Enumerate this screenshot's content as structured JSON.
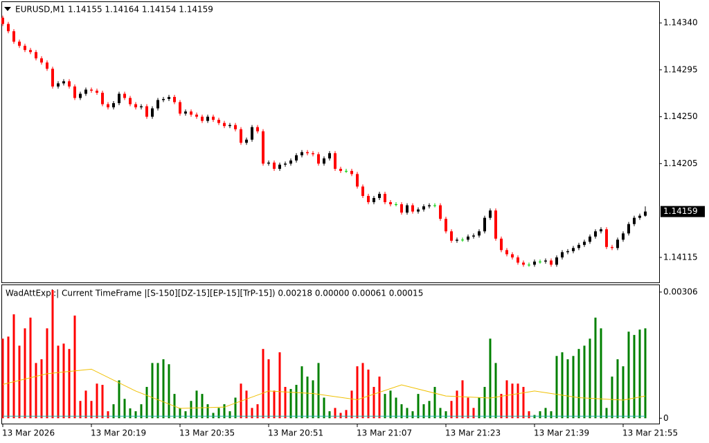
{
  "chart_data": [
    {
      "type": "candlestick",
      "title": "EURUSD,M1  1.14155 1.14164 1.14154 1.14159",
      "open": [
        1.14345,
        1.14339,
        1.14332,
        1.14322,
        1.14318,
        1.14314,
        1.14312,
        1.14306,
        1.14302,
        1.14296,
        1.14279,
        1.14282,
        1.14284,
        1.14279,
        1.14268,
        1.14272,
        1.14276,
        1.14275,
        1.14273,
        1.14262,
        1.14259,
        1.14263,
        1.14272,
        1.14268,
        1.14262,
        1.14259,
        1.1426,
        1.1425,
        1.14258,
        1.14266,
        1.14267,
        1.14269,
        1.14264,
        1.14253,
        1.14255,
        1.14252,
        1.1425,
        1.14246,
        1.1425,
        1.14247,
        1.14244,
        1.14241,
        1.14242,
        1.14238,
        1.14225,
        1.14228,
        1.1424,
        1.14236,
        1.14205,
        1.14206,
        1.142,
        1.14204,
        1.14205,
        1.14208,
        1.14213,
        1.14216,
        1.14215,
        1.14214,
        1.14205,
        1.1421,
        1.14215,
        1.142,
        1.14198,
        1.14198,
        1.14195,
        1.14183,
        1.14174,
        1.14168,
        1.14172,
        1.14176,
        1.14168,
        1.14166,
        1.14166,
        1.14158,
        1.14165,
        1.14159,
        1.14161,
        1.14164,
        1.14165,
        1.14165,
        1.14152,
        1.1414,
        1.14131,
        1.14132,
        1.14132,
        1.14135,
        1.14136,
        1.1414,
        1.14153,
        1.1416,
        1.14133,
        1.14122,
        1.14118,
        1.14115,
        1.1411,
        1.14108,
        1.14108,
        1.14111,
        1.14111,
        1.14112,
        1.14108,
        1.14115,
        1.1412,
        1.14121,
        1.14124,
        1.14127,
        1.1413,
        1.14135,
        1.1414,
        1.14142,
        1.14125,
        1.14124,
        1.14132,
        1.14138,
        1.14147,
        1.14153,
        1.14155
      ],
      "high": [
        1.14347,
        1.14341,
        1.14334,
        1.14324,
        1.1432,
        1.14316,
        1.14314,
        1.14308,
        1.14304,
        1.14298,
        1.14284,
        1.14286,
        1.14286,
        1.14281,
        1.14274,
        1.14278,
        1.14278,
        1.14277,
        1.14275,
        1.14264,
        1.14265,
        1.14274,
        1.14274,
        1.1427,
        1.14264,
        1.14262,
        1.14262,
        1.1426,
        1.14268,
        1.14269,
        1.14271,
        1.14271,
        1.14266,
        1.14257,
        1.14257,
        1.14254,
        1.14252,
        1.14252,
        1.14252,
        1.14249,
        1.14246,
        1.14244,
        1.14244,
        1.1424,
        1.1423,
        1.14242,
        1.14242,
        1.14238,
        1.14208,
        1.14208,
        1.14206,
        1.14207,
        1.1421,
        1.14215,
        1.14218,
        1.14218,
        1.14217,
        1.14216,
        1.14212,
        1.14217,
        1.14217,
        1.14202,
        1.142,
        1.142,
        1.14197,
        1.14185,
        1.14176,
        1.14174,
        1.14178,
        1.14178,
        1.1417,
        1.14168,
        1.14168,
        1.14167,
        1.14167,
        1.14163,
        1.14166,
        1.14167,
        1.14167,
        1.14167,
        1.14154,
        1.14142,
        1.14134,
        1.14134,
        1.14137,
        1.14138,
        1.14142,
        1.14155,
        1.14162,
        1.14162,
        1.14135,
        1.14124,
        1.1412,
        1.14117,
        1.14112,
        1.1411,
        1.14113,
        1.14113,
        1.14114,
        1.14114,
        1.14117,
        1.14122,
        1.14123,
        1.14126,
        1.14129,
        1.14132,
        1.14137,
        1.14142,
        1.14144,
        1.14144,
        1.14127,
        1.14134,
        1.1414,
        1.14149,
        1.14155,
        1.14157,
        1.14164
      ],
      "low": [
        1.14337,
        1.1433,
        1.1432,
        1.14316,
        1.14312,
        1.1431,
        1.14304,
        1.143,
        1.14294,
        1.14277,
        1.14277,
        1.1428,
        1.14277,
        1.14266,
        1.14266,
        1.1427,
        1.14273,
        1.14271,
        1.1426,
        1.14257,
        1.14257,
        1.14261,
        1.14266,
        1.1426,
        1.14257,
        1.14257,
        1.14248,
        1.14248,
        1.14256,
        1.14264,
        1.14265,
        1.14262,
        1.14251,
        1.14251,
        1.1425,
        1.14248,
        1.14244,
        1.14244,
        1.14245,
        1.14242,
        1.14239,
        1.14239,
        1.14236,
        1.14223,
        1.14223,
        1.14226,
        1.14234,
        1.14203,
        1.14203,
        1.14198,
        1.14198,
        1.14202,
        1.14203,
        1.14206,
        1.14211,
        1.14213,
        1.14212,
        1.14203,
        1.14203,
        1.14208,
        1.14198,
        1.14196,
        1.14196,
        1.14193,
        1.14181,
        1.14172,
        1.14166,
        1.14166,
        1.1417,
        1.14166,
        1.14164,
        1.14164,
        1.14156,
        1.14156,
        1.14157,
        1.14157,
        1.14159,
        1.14162,
        1.14163,
        1.1415,
        1.14138,
        1.14129,
        1.14129,
        1.1413,
        1.1413,
        1.14133,
        1.14134,
        1.14138,
        1.14151,
        1.14131,
        1.1412,
        1.14116,
        1.14113,
        1.14108,
        1.14106,
        1.14106,
        1.14106,
        1.14109,
        1.14109,
        1.14106,
        1.14106,
        1.14113,
        1.14118,
        1.14119,
        1.14122,
        1.14125,
        1.14128,
        1.14133,
        1.14138,
        1.14123,
        1.14122,
        1.14122,
        1.1413,
        1.14136,
        1.14145,
        1.14151,
        1.14154
      ],
      "close": [
        1.14339,
        1.14332,
        1.14322,
        1.14318,
        1.14314,
        1.14312,
        1.14306,
        1.14302,
        1.14296,
        1.14279,
        1.14282,
        1.14284,
        1.14279,
        1.14268,
        1.14272,
        1.14276,
        1.14275,
        1.14273,
        1.14262,
        1.14259,
        1.14263,
        1.14272,
        1.14268,
        1.14262,
        1.14259,
        1.1426,
        1.1425,
        1.14258,
        1.14266,
        1.14267,
        1.14269,
        1.14264,
        1.14253,
        1.14255,
        1.14252,
        1.1425,
        1.14246,
        1.1425,
        1.14247,
        1.14244,
        1.14241,
        1.14242,
        1.14238,
        1.14225,
        1.14228,
        1.1424,
        1.14236,
        1.14205,
        1.14206,
        1.142,
        1.14204,
        1.14205,
        1.14208,
        1.14213,
        1.14216,
        1.14215,
        1.14214,
        1.14205,
        1.1421,
        1.14215,
        1.142,
        1.14198,
        1.14198,
        1.14195,
        1.14183,
        1.14174,
        1.14168,
        1.14172,
        1.14176,
        1.14168,
        1.14166,
        1.14166,
        1.14158,
        1.14165,
        1.14159,
        1.14161,
        1.14164,
        1.14165,
        1.14165,
        1.14152,
        1.1414,
        1.14131,
        1.14132,
        1.14132,
        1.14135,
        1.14136,
        1.1414,
        1.14153,
        1.1416,
        1.14133,
        1.14122,
        1.14118,
        1.14115,
        1.1411,
        1.14108,
        1.14108,
        1.14111,
        1.14111,
        1.14112,
        1.14108,
        1.14115,
        1.1412,
        1.14121,
        1.14124,
        1.14127,
        1.1413,
        1.14135,
        1.1414,
        1.14142,
        1.14125,
        1.14124,
        1.14132,
        1.14138,
        1.14147,
        1.14153,
        1.14155,
        1.14159
      ],
      "colors": {
        "up": "#000000",
        "down": "#ff0000",
        "doji": "#00cc00"
      },
      "xlim": [
        -0.5,
        118.5
      ],
      "ylim": [
        1.14091,
        1.1436
      ],
      "yticks": [
        {
          "value": 1.1434,
          "label": "1.14340"
        },
        1.14295,
        {
          "value": 1.1425,
          "label": "1.14250"
        },
        1.14205,
        1.14115
      ],
      "last_price": 1.14159
    },
    {
      "type": "bar",
      "title": "WadAttExpl:| Current TimeFrame |[S-150][DZ-15][EP-15][TrP-15]) 0.00218 0.00000 0.00061 0.00015",
      "values": [
        0.00193,
        0.00198,
        0.00252,
        0.00176,
        0.00218,
        0.00244,
        0.00134,
        0.00143,
        0.00218,
        0.00311,
        0.00176,
        0.00181,
        0.00168,
        0.00249,
        0.00042,
        0.00067,
        0.00042,
        0.00084,
        0.00081,
        0.00017,
        0.00034,
        0.00092,
        0.00047,
        0.00024,
        0.00017,
        0.00034,
        0.00076,
        0.00134,
        0.00134,
        0.00143,
        0.00131,
        0.00059,
        0.00025,
        0.00017,
        0.00042,
        0.00067,
        0.00059,
        0.00034,
        0.00013,
        0.00025,
        0.00034,
        0.00017,
        0.0005,
        0.00084,
        0.00067,
        0.00025,
        0.00034,
        0.00168,
        0.00143,
        0.00067,
        0.0016,
        0.00076,
        0.00071,
        0.00081,
        0.00126,
        0.00101,
        0.00092,
        0.00134,
        0.0005,
        0.00017,
        0.00025,
        0.00013,
        0.0002,
        0.00067,
        0.00126,
        0.00134,
        0.00118,
        0.00076,
        0.00101,
        0.00059,
        0.00067,
        0.0005,
        0.00034,
        0.00025,
        0.00017,
        0.00059,
        0.00034,
        0.00042,
        0.00076,
        0.00025,
        0.00017,
        0.00042,
        0.00067,
        0.00092,
        0.0005,
        0.00025,
        0.0005,
        0.00076,
        0.00193,
        0.00134,
        0.00059,
        0.00092,
        0.00084,
        0.00084,
        0.00076,
        0.00017,
        8e-05,
        0.00017,
        0.00025,
        0.00017,
        0.00151,
        0.0016,
        0.00143,
        0.00151,
        0.00168,
        0.00176,
        0.00193,
        0.00244,
        0.00218,
        0.00025,
        0.00101,
        0.00143,
        0.00126,
        0.0021,
        0.00202,
        0.00215,
        0.00218
      ],
      "colors": [
        "red",
        "red",
        "red",
        "red",
        "red",
        "red",
        "red",
        "red",
        "red",
        "red",
        "red",
        "red",
        "red",
        "red",
        "red",
        "red",
        "red",
        "red",
        "red",
        "red",
        "green",
        "green",
        "green",
        "green",
        "green",
        "green",
        "green",
        "green",
        "green",
        "green",
        "green",
        "green",
        "green",
        "green",
        "green",
        "green",
        "green",
        "green",
        "green",
        "green",
        "green",
        "green",
        "green",
        "red",
        "red",
        "red",
        "red",
        "red",
        "red",
        "red",
        "red",
        "red",
        "green",
        "green",
        "green",
        "green",
        "green",
        "green",
        "green",
        "green",
        "red",
        "red",
        "red",
        "red",
        "red",
        "red",
        "red",
        "red",
        "red",
        "green",
        "green",
        "green",
        "green",
        "green",
        "green",
        "green",
        "green",
        "green",
        "green",
        "green",
        "green",
        "red",
        "red",
        "red",
        "red",
        "red",
        "green",
        "green",
        "green",
        "green",
        "red",
        "red",
        "red",
        "red",
        "red",
        "red",
        "green",
        "green",
        "green",
        "green",
        "green",
        "green",
        "green",
        "green",
        "green",
        "green",
        "green",
        "green",
        "green",
        "green",
        "green",
        "green",
        "green",
        "green",
        "green",
        "green",
        "green"
      ],
      "lines": [
        {
          "color": "#f0c000",
          "x": [
            0,
            8,
            16,
            24,
            32,
            40,
            48,
            56,
            64,
            72,
            80,
            88,
            96,
            104,
            112,
            116
          ],
          "values": [
            0.00082,
            0.00108,
            0.00119,
            0.00066,
            0.00024,
            0.00027,
            0.00066,
            0.0006,
            0.00045,
            0.00081,
            0.00054,
            0.00049,
            0.00066,
            0.0005,
            0.00044,
            0.00054
          ]
        },
        {
          "color": "#20b2aa",
          "x": [
            0,
            116
          ],
          "values": [
            5e-05,
            5e-05
          ]
        }
      ],
      "xlim": [
        -0.5,
        118.5
      ],
      "ylim": [
        -0.00013,
        0.00326
      ],
      "yticks": [
        0.00306,
        0
      ],
      "xticks": [
        {
          "value": 0,
          "label": "13 Mar 2026"
        },
        {
          "value": 16,
          "label": "13 Mar 20:19"
        },
        {
          "value": 32,
          "label": "13 Mar 20:35"
        },
        {
          "value": 48,
          "label": "13 Mar 20:51"
        },
        {
          "value": 64,
          "label": "13 Mar 21:07"
        },
        {
          "value": 80,
          "label": "13 Mar 21:23"
        },
        {
          "value": 96,
          "label": "13 Mar 21:39"
        },
        {
          "value": 112,
          "label": "13 Mar 21:55"
        }
      ]
    }
  ]
}
